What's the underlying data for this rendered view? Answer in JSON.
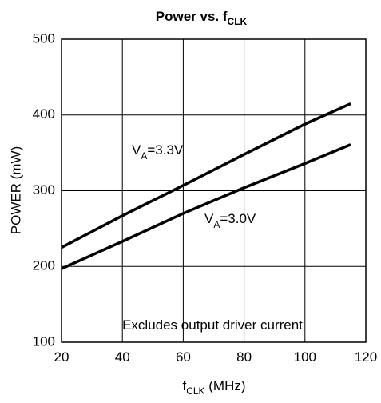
{
  "chart_data": {
    "type": "line",
    "title": {
      "main": "Power vs. f",
      "sub": "CLK"
    },
    "x_label": {
      "main": "f",
      "sub": "CLK",
      "rest": " (MHz)"
    },
    "y_label": "POWER (mW)",
    "x": [
      20,
      40,
      60,
      80,
      100,
      115
    ],
    "series": [
      {
        "color": "#000000",
        "values": [
          225,
          267,
          307,
          348,
          388,
          415
        ]
      },
      {
        "color": "#000000",
        "values": [
          197,
          233,
          270,
          304,
          336,
          361
        ]
      }
    ],
    "annotations": [
      {
        "main": "V",
        "sub": "A",
        "rest": "=3.3V"
      },
      {
        "main": "V",
        "sub": "A",
        "rest": "=3.0V"
      },
      {
        "main": "Excludes output driver current"
      }
    ],
    "xlim": [
      20,
      120
    ],
    "xticks": [
      20,
      40,
      60,
      80,
      100,
      120
    ],
    "ylim": [
      100,
      500
    ],
    "yticks": [
      100,
      200,
      300,
      400,
      500
    ],
    "grid": true
  }
}
